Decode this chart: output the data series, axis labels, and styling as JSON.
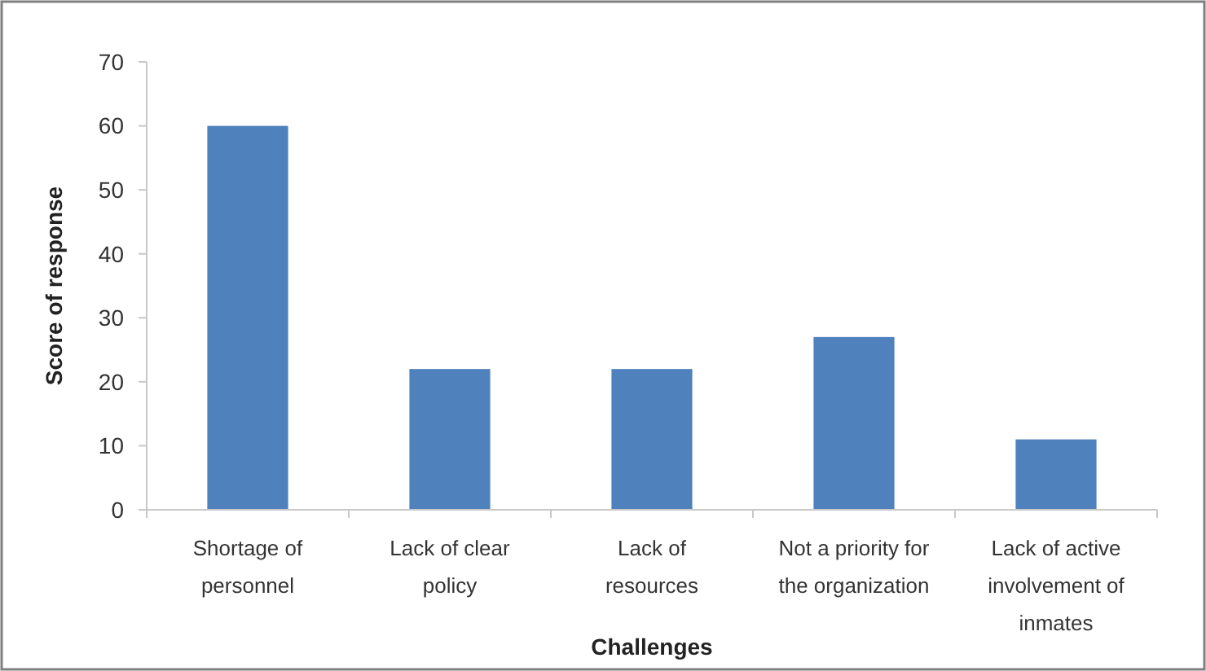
{
  "chart_data": {
    "type": "bar",
    "xlabel": "Challenges",
    "ylabel": "Score of response",
    "categories": [
      "Shortage of personnel",
      "Lack of clear policy",
      "Lack of resources",
      "Not a priority for the organization",
      "Lack of active involvement of inmates"
    ],
    "values": [
      60,
      22,
      22,
      27,
      11
    ],
    "color": "#4f81bd",
    "ylim": [
      0,
      70
    ],
    "yticks": [
      0,
      10,
      20,
      30,
      40,
      50,
      60,
      70
    ]
  }
}
